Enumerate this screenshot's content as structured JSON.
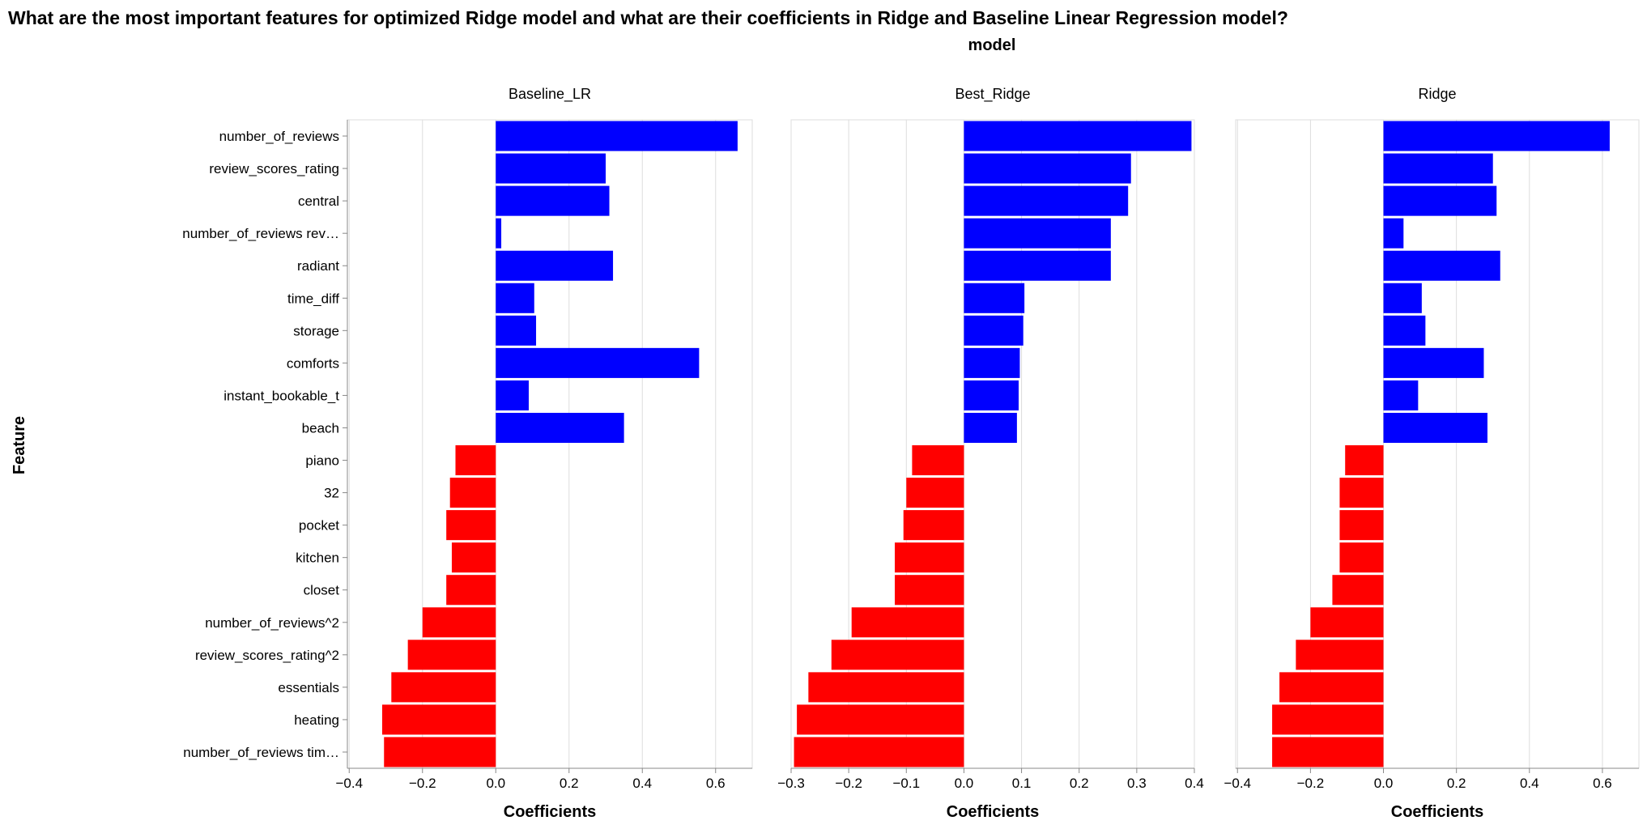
{
  "chart_data": {
    "type": "bar",
    "orientation": "horizontal",
    "title": "What are the most important features for optimized Ridge model and what are their coefficients in Ridge and Baseline Linear Regression model?",
    "facet_header": "model",
    "ylabel": "Feature",
    "xlabel": "Coefficients",
    "grid": true,
    "colors": {
      "positive": "#0000ff",
      "negative": "#ff0000"
    },
    "features": [
      "number_of_reviews",
      "review_scores_rating",
      "central",
      "number_of_reviews rev…",
      "radiant",
      "time_diff",
      "storage",
      "comforts",
      "instant_bookable_t",
      "beach",
      "piano",
      "32",
      "pocket",
      "kitchen",
      "closet",
      "number_of_reviews^2",
      "review_scores_rating^2",
      "essentials",
      "heating",
      "number_of_reviews tim…"
    ],
    "panels": [
      {
        "name": "Baseline_LR",
        "xlim": [
          -0.405,
          0.7
        ],
        "ticks": [
          -0.4,
          -0.2,
          0.0,
          0.2,
          0.4,
          0.6
        ],
        "tick_labels": [
          "−0.4",
          "−0.2",
          "0.0",
          "0.2",
          "0.4",
          "0.6"
        ],
        "values": [
          0.66,
          0.3,
          0.31,
          0.015,
          0.32,
          0.105,
          0.11,
          0.555,
          0.09,
          0.35,
          -0.11,
          -0.125,
          -0.135,
          -0.12,
          -0.135,
          -0.2,
          -0.24,
          -0.285,
          -0.31,
          -0.305
        ]
      },
      {
        "name": "Best_Ridge",
        "xlim": [
          -0.3,
          0.4
        ],
        "ticks": [
          -0.3,
          -0.2,
          -0.1,
          0.0,
          0.1,
          0.2,
          0.3,
          0.4
        ],
        "tick_labels": [
          "−0.3",
          "−0.2",
          "−0.1",
          "0.0",
          "0.1",
          "0.2",
          "0.3",
          "0.4"
        ],
        "values": [
          0.395,
          0.29,
          0.285,
          0.255,
          0.255,
          0.105,
          0.103,
          0.097,
          0.095,
          0.092,
          -0.09,
          -0.1,
          -0.105,
          -0.12,
          -0.12,
          -0.195,
          -0.23,
          -0.27,
          -0.29,
          -0.295
        ]
      },
      {
        "name": "Ridge",
        "xlim": [
          -0.405,
          0.7
        ],
        "ticks": [
          -0.4,
          -0.2,
          0.0,
          0.2,
          0.4,
          0.6
        ],
        "tick_labels": [
          "−0.4",
          "−0.2",
          "0.0",
          "0.2",
          "0.4",
          "0.6"
        ],
        "values": [
          0.62,
          0.3,
          0.31,
          0.055,
          0.32,
          0.105,
          0.115,
          0.275,
          0.095,
          0.285,
          -0.105,
          -0.12,
          -0.12,
          -0.12,
          -0.14,
          -0.2,
          -0.24,
          -0.285,
          -0.305,
          -0.305
        ]
      }
    ]
  }
}
